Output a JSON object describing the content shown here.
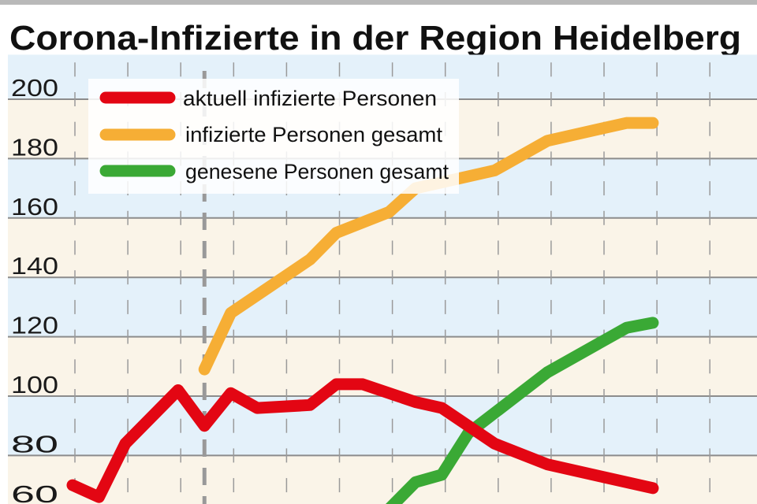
{
  "chart_data": {
    "type": "line",
    "title": "Corona-Infizierte in der Region Heidelberg",
    "xlabel": "",
    "ylabel": "",
    "ylim": [
      60,
      215
    ],
    "yticks": [
      "200",
      "180",
      "160",
      "140",
      "120",
      "100",
      "80",
      "60"
    ],
    "grid": true,
    "legend_position": "top-left",
    "marker_line_x": 5,
    "series": [
      {
        "name": "aktuell infizierte Personen",
        "color": "#e30613",
        "x": [
          0,
          1,
          2,
          4,
          5,
          6,
          7,
          9,
          10,
          11,
          13,
          14,
          16,
          18,
          20,
          22
        ],
        "values": [
          70,
          66,
          84,
          102,
          90,
          101,
          96,
          97,
          104,
          104,
          98,
          96,
          84,
          77,
          73,
          69
        ]
      },
      {
        "name": "infizierte Personen gesamt",
        "color": "#f6ae35",
        "x": [
          5,
          6,
          8,
          9,
          10,
          12,
          13,
          14,
          16,
          18,
          21,
          22
        ],
        "values": [
          109,
          128,
          140,
          146,
          155,
          162,
          170,
          172,
          176,
          186,
          192,
          192
        ]
      },
      {
        "name": "genesene Personen gesamt",
        "color": "#3aa935",
        "x": [
          12,
          13,
          14,
          15,
          18,
          21,
          22
        ],
        "values": [
          62,
          71,
          73.5,
          87.5,
          108,
          123,
          124.7
        ]
      }
    ]
  }
}
